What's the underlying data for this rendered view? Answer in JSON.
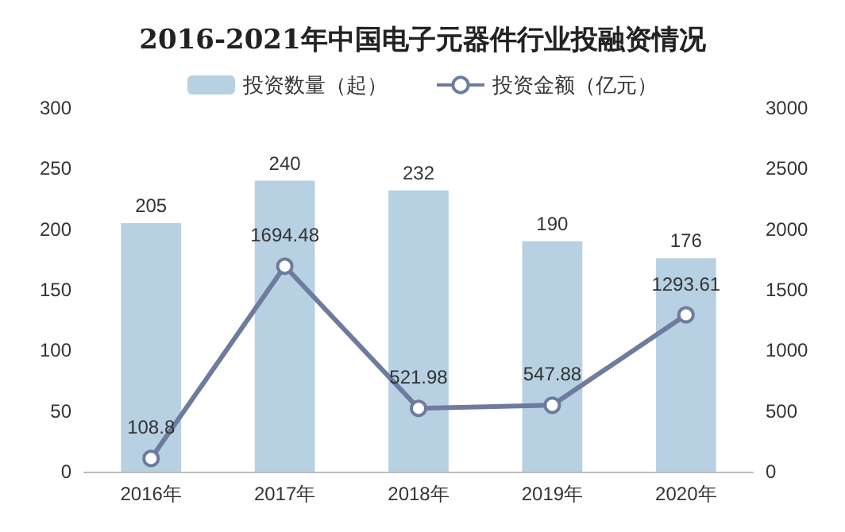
{
  "chart_data": {
    "type": "bar",
    "title": "2016-2021年中国电子元器件行业投融资情况",
    "categories": [
      "2016年",
      "2017年",
      "2018年",
      "2019年",
      "2020年"
    ],
    "series": [
      {
        "name": "投资数量（起）",
        "color": "#b7d1e3",
        "values": [
          205,
          240,
          232,
          190,
          176
        ]
      },
      {
        "name": "投资金额（亿元）",
        "type": "line",
        "axis": "y2",
        "color": "#6e7b9e",
        "marker": "circle",
        "values": [
          108.8,
          1694.48,
          521.98,
          547.88,
          1293.61
        ]
      }
    ],
    "ylim": [
      0,
      300
    ],
    "yticks": [
      0,
      50,
      100,
      150,
      200,
      250,
      300
    ],
    "y2lim": [
      0,
      3000
    ],
    "y2ticks": [
      0,
      500,
      1000,
      1500,
      2000,
      2500,
      3000
    ],
    "data_labels": true,
    "legend": "top",
    "grid": false
  }
}
